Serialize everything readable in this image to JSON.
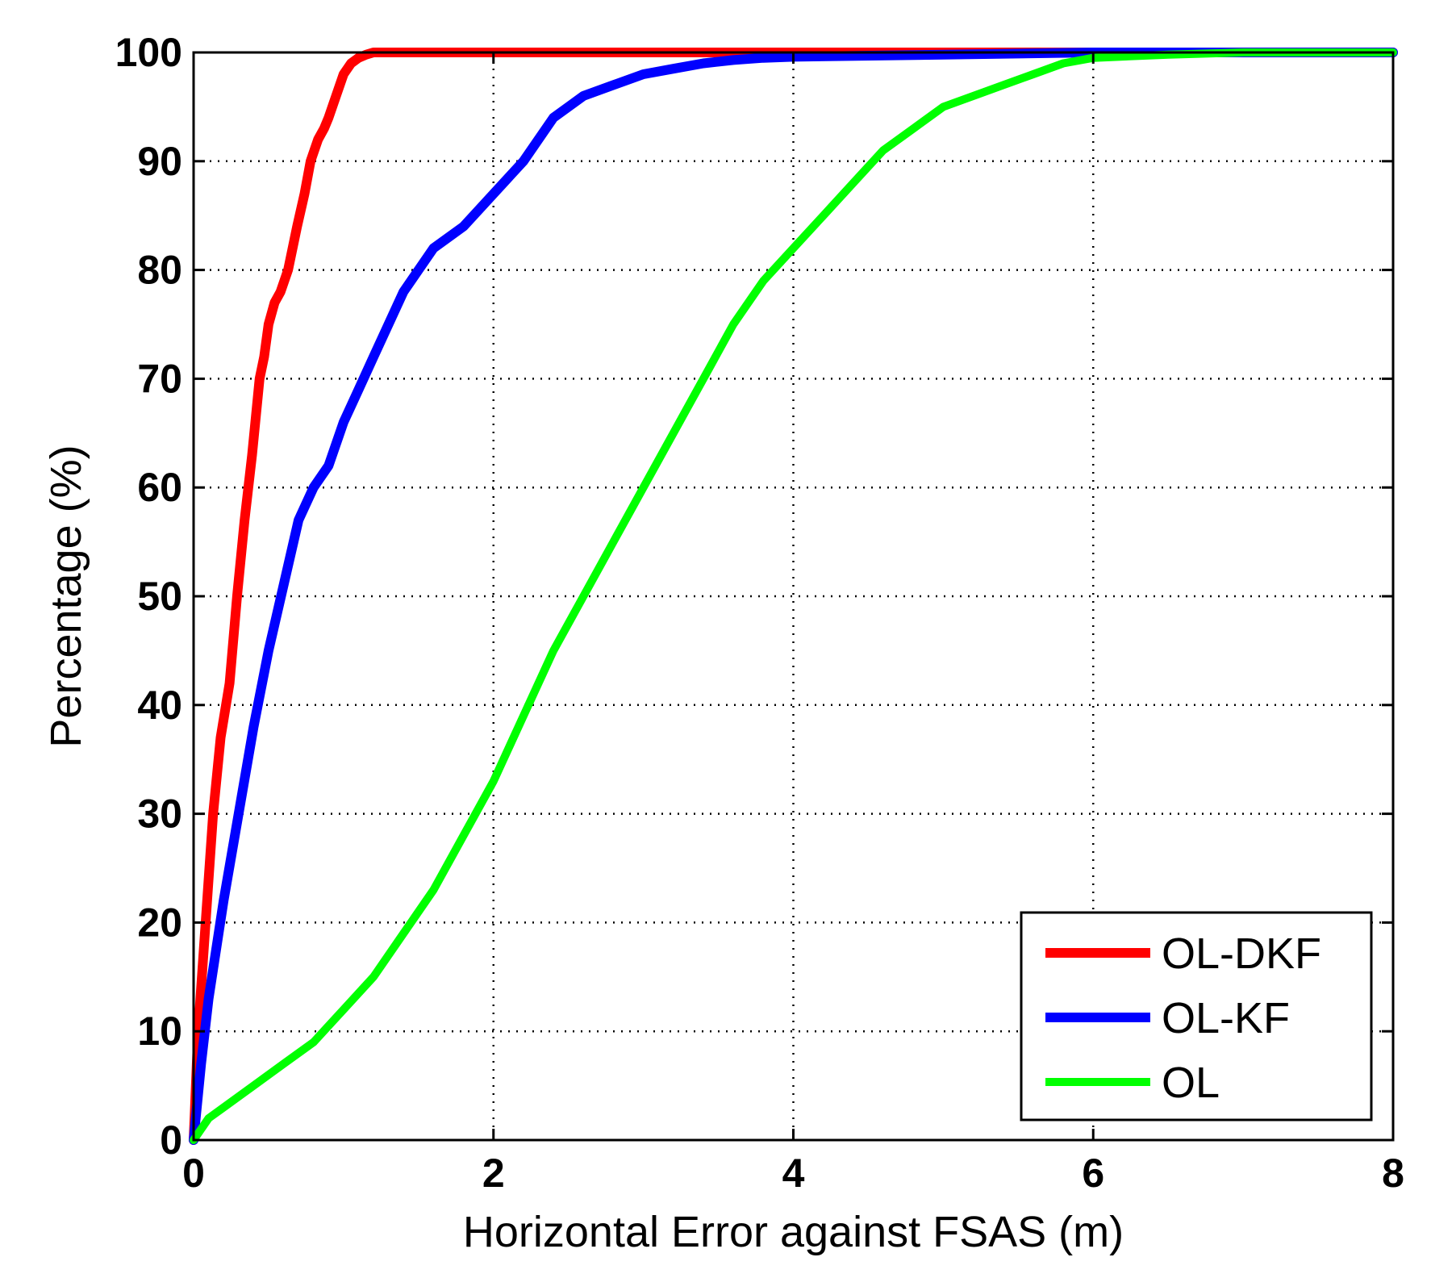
{
  "chart_data": {
    "type": "line",
    "title": "",
    "xlabel": "Horizontal Error against FSAS (m)",
    "ylabel": "Percentage (%)",
    "xlim": [
      0,
      8
    ],
    "ylim": [
      0,
      100
    ],
    "xticks": [
      0,
      2,
      4,
      6,
      8
    ],
    "yticks": [
      0,
      10,
      20,
      30,
      40,
      50,
      60,
      70,
      80,
      90,
      100
    ],
    "grid": true,
    "legend_position": "bottom-right",
    "series": [
      {
        "name": "OL-DKF",
        "color": "#ff0000",
        "x": [
          0,
          0.03,
          0.08,
          0.13,
          0.18,
          0.24,
          0.29,
          0.34,
          0.39,
          0.44,
          0.47,
          0.5,
          0.54,
          0.58,
          0.63,
          0.69,
          0.74,
          0.78,
          0.83,
          0.87,
          0.9,
          0.95,
          1.0,
          1.05,
          1.1,
          1.15,
          1.2,
          1.3,
          1.5,
          2.0,
          3.0,
          5.0,
          8.0
        ],
        "y": [
          0,
          10,
          20,
          30,
          37,
          42,
          50,
          57,
          63,
          70,
          72,
          75,
          77,
          78,
          80,
          84,
          87,
          90,
          92,
          93,
          94,
          96,
          98,
          99,
          99.5,
          99.8,
          100,
          100,
          100,
          100,
          100,
          100,
          100
        ]
      },
      {
        "name": "OL-KF",
        "color": "#0000ff",
        "x": [
          0,
          0.05,
          0.1,
          0.2,
          0.3,
          0.4,
          0.5,
          0.6,
          0.7,
          0.8,
          0.9,
          1.0,
          1.1,
          1.2,
          1.3,
          1.4,
          1.5,
          1.6,
          1.8,
          2.0,
          2.2,
          2.4,
          2.6,
          2.8,
          3.0,
          3.2,
          3.4,
          3.6,
          3.8,
          4.0,
          5.0,
          6.0,
          8.0
        ],
        "y": [
          0,
          7,
          13,
          22,
          30,
          38,
          45,
          51,
          57,
          60,
          62,
          66,
          69,
          72,
          75,
          78,
          80,
          82,
          84,
          87,
          90,
          94,
          96,
          97,
          98,
          98.5,
          99,
          99.3,
          99.5,
          99.6,
          99.8,
          100,
          100
        ]
      },
      {
        "name": "OL",
        "color": "#00ff00",
        "x": [
          0,
          0.1,
          0.2,
          0.4,
          0.6,
          0.8,
          1.0,
          1.2,
          1.4,
          1.6,
          1.8,
          2.0,
          2.2,
          2.4,
          2.6,
          2.8,
          3.0,
          3.2,
          3.4,
          3.6,
          3.8,
          4.0,
          4.2,
          4.4,
          4.6,
          4.8,
          5.0,
          5.2,
          5.4,
          5.6,
          5.8,
          6.0,
          6.5,
          7.0,
          8.0
        ],
        "y": [
          0,
          2,
          3,
          5,
          7,
          9,
          12,
          15,
          19,
          23,
          28,
          33,
          39,
          45,
          50,
          55,
          60,
          65,
          70,
          75,
          79,
          82,
          85,
          88,
          91,
          93,
          95,
          96,
          97,
          98,
          99,
          99.5,
          99.8,
          100,
          100
        ]
      }
    ]
  }
}
